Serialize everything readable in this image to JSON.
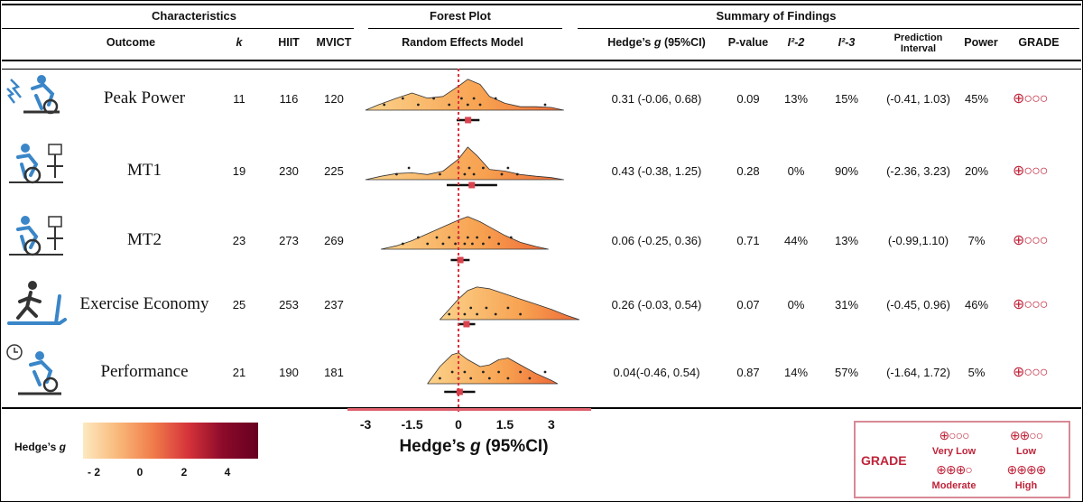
{
  "headers": {
    "characteristics": "Characteristics",
    "forest_plot": "Forest Plot",
    "summary": "Summary of Findings"
  },
  "columns": {
    "outcome": "Outcome",
    "k": "k",
    "hiit": "HIIT",
    "mvict": "MVICT",
    "model": "Random Effects Model",
    "hedges_prefix": "Hedge’s ",
    "hedges_g": "g",
    "hedges_suffix": " (95%CI)",
    "pvalue": "P-value",
    "i2_2": "I²-2",
    "i2_3": "I²-3",
    "prediction_line1": "Prediction",
    "prediction_line2": "Interval",
    "power": "Power",
    "grade": "GRADE"
  },
  "rows": [
    {
      "outcome": "Peak Power",
      "k": "11",
      "hiit": "116",
      "mvict": "120",
      "hedges": "0.31 (-0.06, 0.68)",
      "p": "0.09",
      "i2_2": "13%",
      "i2_3": "15%",
      "pi": "(-0.41, 1.03)",
      "power": "45%",
      "grade": "⊕○○○",
      "icon": "cyclist-lightning-icon"
    },
    {
      "outcome": "MT1",
      "k": "19",
      "hiit": "230",
      "mvict": "225",
      "hedges": "0.43 (-0.38, 1.25)",
      "p": "0.28",
      "i2_2": "0%",
      "i2_3": "90%",
      "pi": "(-2.36, 3.23)",
      "power": "20%",
      "grade": "⊕○○○",
      "icon": "cyclist-monitor-icon"
    },
    {
      "outcome": "MT2",
      "k": "23",
      "hiit": "273",
      "mvict": "269",
      "hedges": "0.06 (-0.25, 0.36)",
      "p": "0.71",
      "i2_2": "44%",
      "i2_3": "13%",
      "pi": "(-0.99,1.10)",
      "power": "7%",
      "grade": "⊕○○○",
      "icon": "cyclist-monitor-icon"
    },
    {
      "outcome": "Exercise Economy",
      "k": "25",
      "hiit": "253",
      "mvict": "237",
      "hedges": "0.26 (-0.03, 0.54)",
      "p": "0.07",
      "i2_2": "0%",
      "i2_3": "31%",
      "pi": "(-0.45, 0.96)",
      "power": "46%",
      "grade": "⊕○○○",
      "icon": "treadmill-runner-icon"
    },
    {
      "outcome": "Performance",
      "k": "21",
      "hiit": "190",
      "mvict": "181",
      "hedges": "0.04(-0.46, 0.54)",
      "p": "0.87",
      "i2_2": "14%",
      "i2_3": "57%",
      "pi": "(-1.64, 1.72)",
      "power": "5%",
      "grade": "⊕○○○",
      "icon": "cyclist-clock-icon"
    }
  ],
  "colorbar": {
    "label_prefix": "Hedge’s ",
    "label_g": "g",
    "ticks": [
      "- 2",
      "0",
      "2",
      "4"
    ]
  },
  "grade_legend": {
    "title": "GRADE",
    "very_low_sym": "⊕○○○",
    "very_low": "Very Low",
    "low_sym": "⊕⊕○○",
    "low": "Low",
    "moderate_sym": "⊕⊕⊕○",
    "moderate": "Moderate",
    "high_sym": "⊕⊕⊕⊕",
    "high": "High"
  },
  "chart_data": {
    "type": "forest",
    "title": "Forest Plot",
    "subtitle": "Random Effects Model",
    "xlabel_prefix": "Hedge’s ",
    "xlabel_g": "g",
    "xlabel_suffix": " (95%CI)",
    "xticks": [
      -3,
      -1.5,
      0,
      1.5,
      3
    ],
    "xtick_labels": [
      "-3",
      "-1.5",
      "0",
      "1.5",
      "3"
    ],
    "xlim": [
      -3.5,
      4.5
    ],
    "reference_line": 0,
    "series": [
      {
        "name": "Peak Power",
        "estimate": 0.31,
        "ci": [
          -0.06,
          0.68
        ],
        "density_x": [
          -3,
          -2.6,
          -2,
          -1.5,
          -1,
          -0.5,
          0,
          0.3,
          0.7,
          1,
          1.5,
          2,
          2.5,
          3,
          3.4
        ],
        "density_y": [
          0,
          0.15,
          0.35,
          0.5,
          0.35,
          0.4,
          0.7,
          0.9,
          0.75,
          0.4,
          0.2,
          0.1,
          0.1,
          0.08,
          0
        ],
        "points": [
          -2.4,
          -1.8,
          -1.3,
          -0.8,
          -0.3,
          0.1,
          0.3,
          0.5,
          0.7,
          1.2,
          2.8
        ]
      },
      {
        "name": "MT1",
        "estimate": 0.43,
        "ci": [
          -0.38,
          1.25
        ],
        "density_x": [
          -3,
          -2.5,
          -2,
          -1.5,
          -1,
          -0.5,
          0,
          0.3,
          0.6,
          1,
          1.5,
          2,
          2.5,
          3,
          3.4
        ],
        "density_y": [
          0,
          0.1,
          0.18,
          0.2,
          0.15,
          0.25,
          0.6,
          0.95,
          0.7,
          0.3,
          0.25,
          0.15,
          0.1,
          0.06,
          0
        ],
        "points": [
          -2.0,
          -1.6,
          -0.6,
          0.0,
          0.2,
          0.35,
          0.5,
          0.8,
          1.4,
          1.6,
          1.9
        ]
      },
      {
        "name": "MT2",
        "estimate": 0.06,
        "ci": [
          -0.25,
          0.36
        ],
        "density_x": [
          -2.5,
          -2,
          -1.5,
          -1,
          -0.5,
          0,
          0.3,
          0.7,
          1,
          1.5,
          2,
          2.5,
          2.9
        ],
        "density_y": [
          0,
          0.1,
          0.25,
          0.45,
          0.65,
          0.85,
          0.95,
          0.8,
          0.65,
          0.4,
          0.2,
          0.08,
          0
        ],
        "points": [
          -1.8,
          -1.3,
          -1.0,
          -0.7,
          -0.5,
          -0.3,
          -0.1,
          0.0,
          0.2,
          0.3,
          0.45,
          0.6,
          0.8,
          1.0,
          1.3,
          1.7
        ]
      },
      {
        "name": "Exercise Economy",
        "estimate": 0.26,
        "ci": [
          -0.03,
          0.54
        ],
        "density_x": [
          -0.6,
          -0.3,
          0,
          0.3,
          0.6,
          1,
          1.5,
          2,
          2.5,
          3,
          3.5,
          3.9
        ],
        "density_y": [
          0,
          0.3,
          0.6,
          0.85,
          0.95,
          0.9,
          0.75,
          0.6,
          0.45,
          0.3,
          0.12,
          0
        ],
        "points": [
          -0.3,
          0.0,
          0.2,
          0.4,
          0.6,
          0.9,
          1.2,
          1.6,
          2.0
        ]
      },
      {
        "name": "Performance",
        "estimate": 0.04,
        "ci": [
          -0.46,
          0.54
        ],
        "density_x": [
          -1,
          -0.6,
          -0.2,
          0,
          0.3,
          0.7,
          1,
          1.3,
          1.6,
          2,
          2.5,
          3,
          3.2
        ],
        "density_y": [
          0,
          0.5,
          0.85,
          0.9,
          0.7,
          0.5,
          0.55,
          0.7,
          0.75,
          0.55,
          0.3,
          0.1,
          0
        ],
        "points": [
          -0.6,
          -0.2,
          0.0,
          0.2,
          0.4,
          0.8,
          1.0,
          1.3,
          1.6,
          2.0,
          2.3,
          2.8
        ]
      }
    ]
  }
}
